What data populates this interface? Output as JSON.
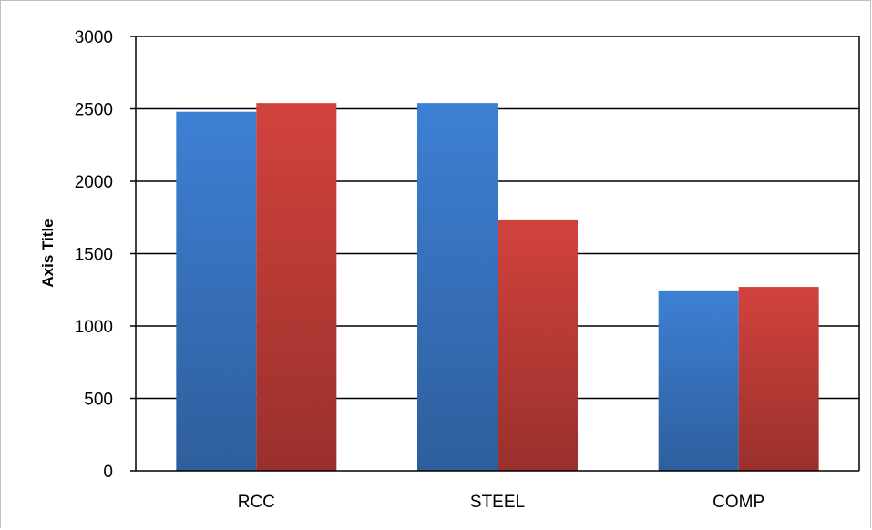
{
  "chart_data": {
    "type": "bar",
    "categories": [
      "RCC",
      "STEEL",
      "COMP"
    ],
    "series": [
      {
        "values": [
          2480,
          2540,
          1240
        ],
        "color": "#3b78c9"
      },
      {
        "values": [
          2540,
          1730,
          1270
        ],
        "color": "#c9403a"
      }
    ],
    "title": "",
    "xlabel": "",
    "ylabel": "Axis Title",
    "ylim": [
      0,
      3000
    ],
    "yticks": [
      "0",
      "500",
      "1000",
      "1500",
      "2000",
      "2500",
      "3000"
    ],
    "grid": true,
    "legend": "none"
  }
}
